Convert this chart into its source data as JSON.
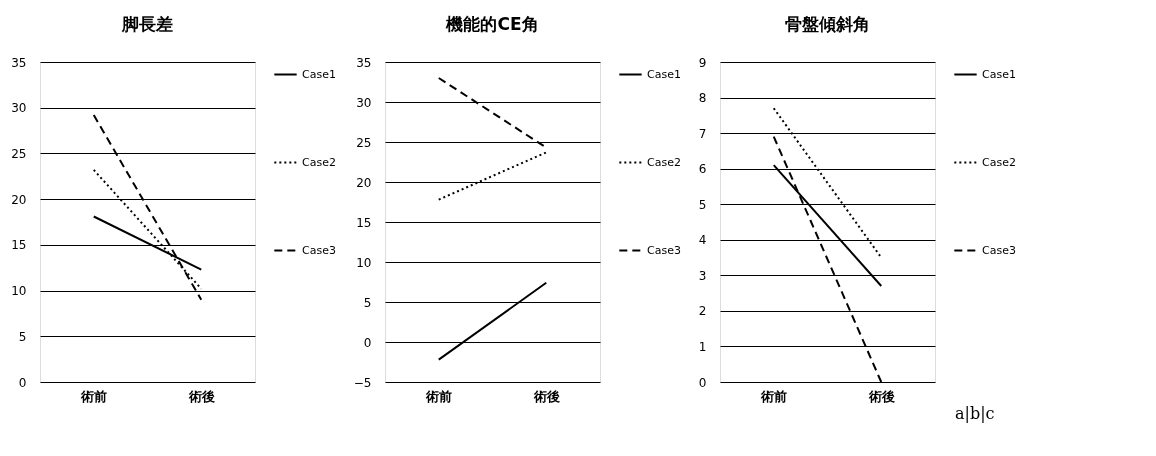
{
  "chart_data": [
    {
      "type": "line",
      "title": "脚長差",
      "categories": [
        "術前",
        "術後"
      ],
      "ylim": [
        0,
        35
      ],
      "yticks": [
        0,
        5,
        10,
        15,
        20,
        25,
        30,
        35
      ],
      "grid": "y",
      "legend": "right",
      "series": [
        {
          "name": "Case1",
          "color": "#000000",
          "line_style": "solid",
          "values": [
            18.1,
            12.3
          ]
        },
        {
          "name": "Case2",
          "color": "#000000",
          "line_style": "dotted",
          "values": [
            23.2,
            10.2
          ]
        },
        {
          "name": "Case3",
          "color": "#000000",
          "line_style": "dashed",
          "values": [
            29.2,
            9.0
          ]
        }
      ]
    },
    {
      "type": "line",
      "title": "機能的CE角",
      "categories": [
        "術前",
        "術後"
      ],
      "ylim": [
        -5,
        35
      ],
      "yticks": [
        {
          "value": -5,
          "label": "−5"
        },
        0,
        5,
        10,
        15,
        20,
        25,
        30,
        35
      ],
      "grid": "y",
      "legend": "right",
      "series": [
        {
          "name": "Case1",
          "color": "#000000",
          "line_style": "solid",
          "values": [
            -2.2,
            7.4
          ]
        },
        {
          "name": "Case2",
          "color": "#000000",
          "line_style": "dotted",
          "values": [
            17.8,
            23.7
          ]
        },
        {
          "name": "Case3",
          "color": "#000000",
          "line_style": "dashed",
          "values": [
            33.0,
            24.3
          ]
        }
      ]
    },
    {
      "type": "line",
      "title": "骨盤傾斜角",
      "categories": [
        "術前",
        "術後"
      ],
      "ylim": [
        0,
        9
      ],
      "yticks": [
        0,
        1,
        2,
        3,
        4,
        5,
        6,
        7,
        8,
        9
      ],
      "grid": "y",
      "legend": "right",
      "annotations": [
        "a|b|c"
      ],
      "series": [
        {
          "name": "Case1",
          "color": "#000000",
          "line_style": "solid",
          "values": [
            6.1,
            2.7
          ]
        },
        {
          "name": "Case2",
          "color": "#000000",
          "line_style": "dotted",
          "values": [
            7.7,
            3.5
          ]
        },
        {
          "name": "Case3",
          "color": "#000000",
          "line_style": "dashed",
          "values": [
            6.9,
            0
          ]
        }
      ]
    }
  ]
}
